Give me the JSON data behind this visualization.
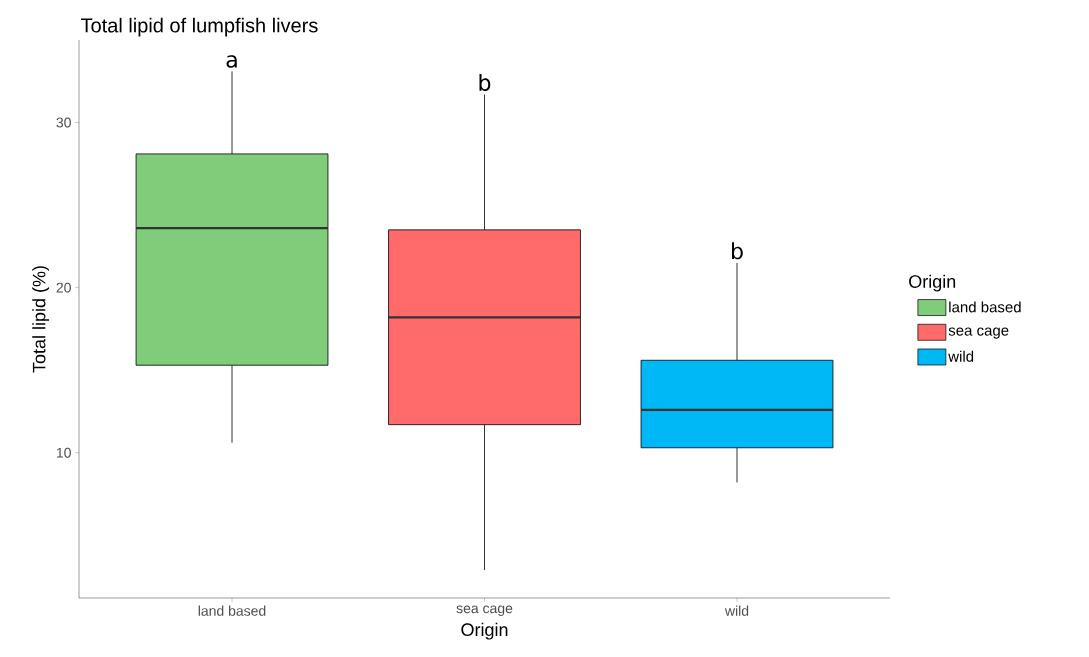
{
  "chart_data": {
    "type": "box",
    "title": "Total lipid of lumpfish livers",
    "xlabel": "Origin",
    "ylabel": "Total lipid (%)",
    "categories": [
      "land based",
      "sea cage",
      "wild"
    ],
    "series": [
      {
        "name": "land based",
        "color": "#7fcd7b",
        "boxes": [
          {
            "low": 10.6,
            "q1": 15.3,
            "median": 23.6,
            "q3": 28.1,
            "high": 33.1
          },
          null,
          null
        ]
      },
      {
        "name": "sea cage",
        "color": "#ff6a6a",
        "boxes": [
          null,
          {
            "low": 2.9,
            "q1": 11.7,
            "median": 18.2,
            "q3": 23.5,
            "high": 31.7
          },
          null
        ]
      },
      {
        "name": "wild",
        "color": "#00b8f5",
        "boxes": [
          null,
          null,
          {
            "low": 8.2,
            "q1": 10.3,
            "median": 12.6,
            "q3": 15.6,
            "high": 21.5
          }
        ]
      }
    ],
    "ylim": [
      1.2,
      35
    ],
    "yticks": [
      10,
      20,
      30
    ],
    "legend": "right",
    "legend_title": "Origin",
    "annotations": [
      "a",
      "b",
      "b"
    ]
  }
}
